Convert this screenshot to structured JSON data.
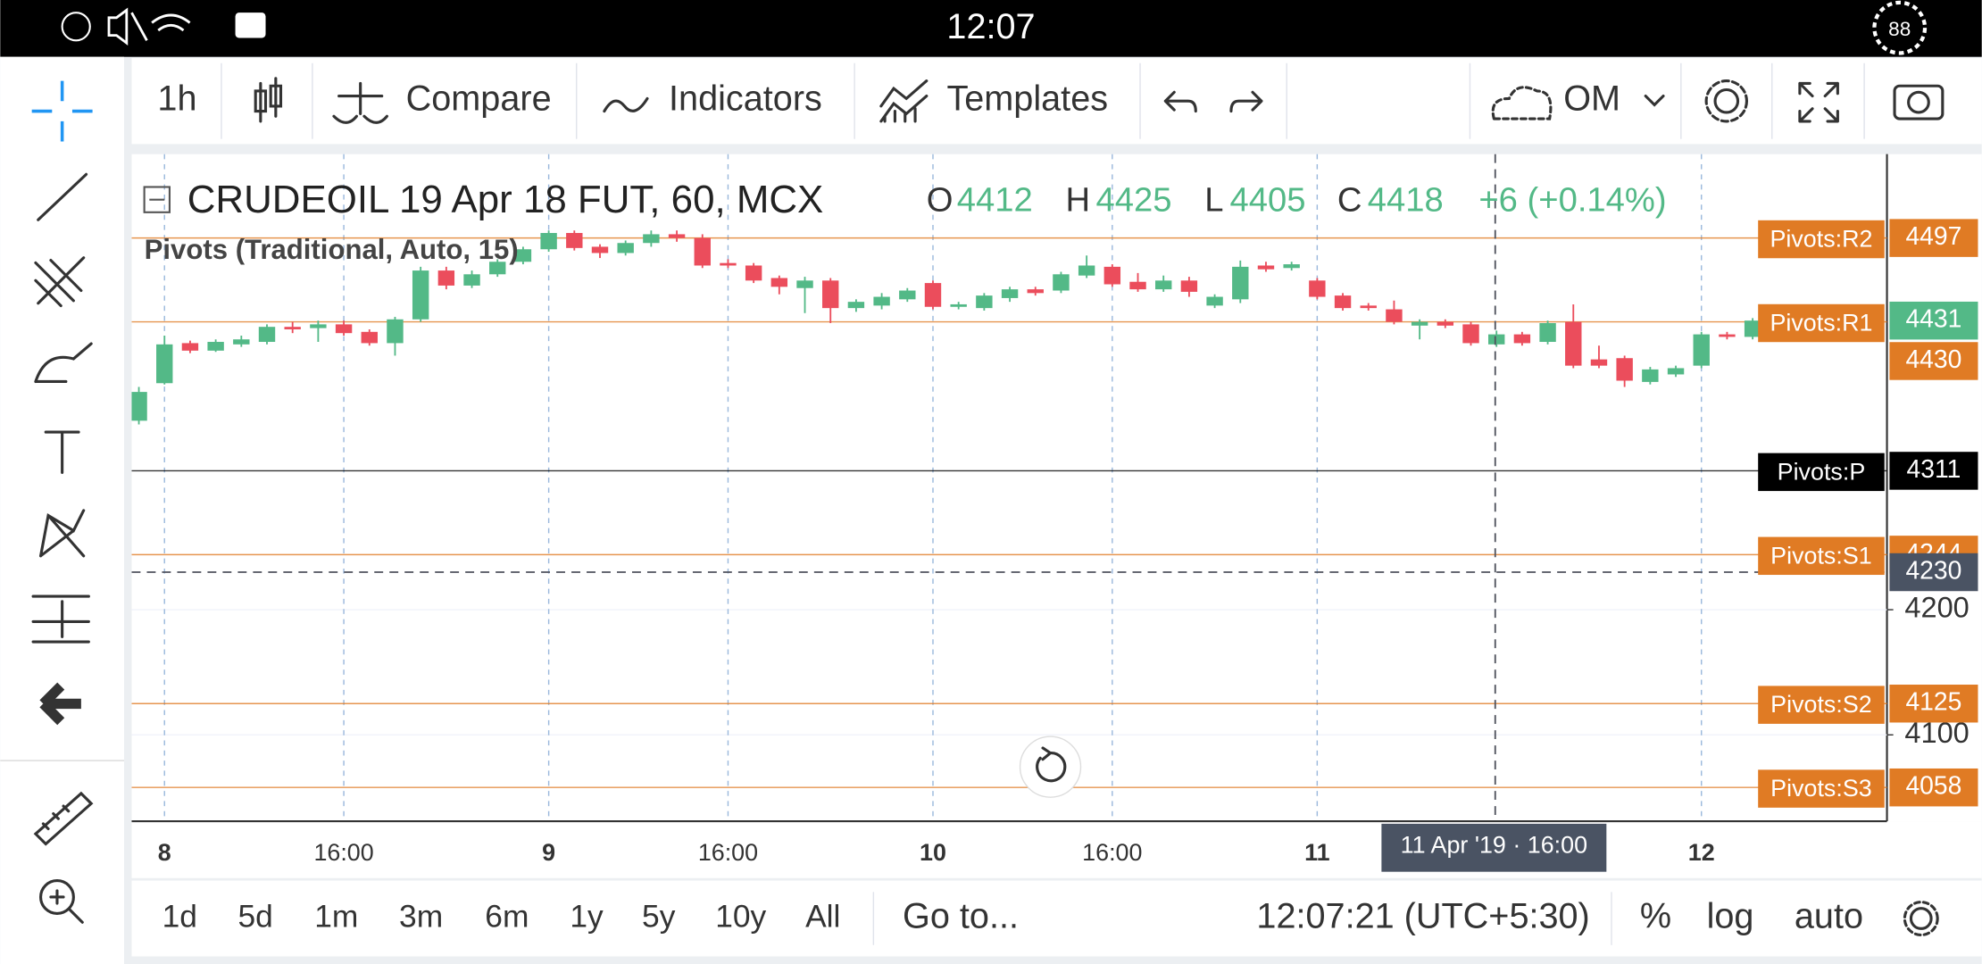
{
  "status_bar": {
    "time": "12:07",
    "battery": "88"
  },
  "toolbar": {
    "interval": "1h",
    "compare": "Compare",
    "indicators": "Indicators",
    "templates": "Templates",
    "account": "OM"
  },
  "chart_data": {
    "type": "candlestick",
    "title": "CRUDEOIL 19 Apr 18 FUT, 60, MCX",
    "legend_ohlc": {
      "labels": [
        "O",
        "H",
        "L",
        "C"
      ],
      "values": [
        4412,
        4425,
        4405,
        4418
      ],
      "change": "+6 (+0.14%)"
    },
    "indicator": "Pivots (Traditional, Auto, 15)",
    "up_color": "#53b987",
    "down_color": "#eb4d5c",
    "categories": [
      null,
      "8",
      null,
      null,
      null,
      null,
      null,
      null,
      "16:00",
      null,
      null,
      null,
      null,
      null,
      null,
      null,
      "9",
      null,
      null,
      null,
      null,
      null,
      null,
      "16:00",
      null,
      null,
      null,
      null,
      null,
      null,
      null,
      "10",
      null,
      null,
      null,
      null,
      null,
      null,
      "16:00",
      null,
      null,
      null,
      null,
      null,
      null,
      null,
      "11",
      null,
      null,
      null,
      null,
      null,
      null,
      null,
      null,
      null,
      null,
      null,
      null,
      null,
      null,
      "12",
      null,
      null
    ],
    "open": [
      4351,
      4381,
      4413,
      4407,
      4412,
      4414,
      4426,
      4425,
      4428,
      4422,
      4413,
      4432,
      4471,
      4459,
      4468,
      4478,
      4488,
      4501,
      4490,
      4485,
      4493,
      4500,
      4497,
      4477,
      4475,
      4465,
      4457,
      4463,
      4441,
      4443,
      4448,
      4461,
      4442,
      4441,
      4449,
      4456,
      4455,
      4467,
      4474,
      4462,
      4456,
      4463,
      4443,
      4448,
      4475,
      4473,
      4463,
      4451,
      4443,
      4440,
      4427,
      4430,
      4428,
      4412,
      4420,
      4414,
      4430,
      4400,
      4401,
      4382,
      4388,
      4395,
      4420,
      4418
    ],
    "high": [
      4378,
      4419,
      4415,
      4416,
      4419,
      4428,
      4430,
      4431,
      4431,
      4424,
      4434,
      4474,
      4474,
      4471,
      4480,
      4490,
      4503,
      4503,
      4492,
      4495,
      4503,
      4503,
      4500,
      4480,
      4477,
      4467,
      4466,
      4465,
      4448,
      4453,
      4457,
      4463,
      4446,
      4453,
      4458,
      4458,
      4470,
      4483,
      4476,
      4469,
      4467,
      4466,
      4452,
      4479,
      4478,
      4478,
      4465,
      4453,
      4445,
      4447,
      4432,
      4432,
      4430,
      4423,
      4422,
      4431,
      4444,
      4411,
      4403,
      4394,
      4395,
      4422,
      4422,
      4433
    ],
    "low": [
      4348,
      4380,
      4405,
      4406,
      4410,
      4412,
      4421,
      4414,
      4419,
      4411,
      4403,
      4430,
      4456,
      4457,
      4466,
      4476,
      4486,
      4487,
      4481,
      4483,
      4490,
      4494,
      4473,
      4473,
      4461,
      4452,
      4437,
      4429,
      4438,
      4440,
      4446,
      4440,
      4440,
      4439,
      4446,
      4451,
      4453,
      4465,
      4458,
      4454,
      4454,
      4450,
      4441,
      4445,
      4470,
      4471,
      4448,
      4439,
      4439,
      4428,
      4416,
      4425,
      4411,
      4410,
      4411,
      4412,
      4393,
      4393,
      4378,
      4380,
      4386,
      4393,
      4416,
      4416
    ],
    "close": [
      4374,
      4412,
      4407,
      4414,
      4416,
      4426,
      4424,
      4428,
      4421,
      4413,
      4432,
      4471,
      4459,
      4468,
      4478,
      4488,
      4501,
      4489,
      4485,
      4493,
      4500,
      4497,
      4475,
      4475,
      4463,
      4458,
      4463,
      4441,
      4446,
      4450,
      4455,
      4442,
      4444,
      4451,
      4456,
      4453,
      4468,
      4475,
      4460,
      4456,
      4463,
      4454,
      4450,
      4474,
      4472,
      4476,
      4450,
      4441,
      4441,
      4430,
      4430,
      4427,
      4413,
      4420,
      4413,
      4429,
      4395,
      4395,
      4383,
      4392,
      4393,
      4420,
      4418,
      4431
    ],
    "ylim": [
      4031,
      4564
    ],
    "yticks": [
      4100,
      4200
    ],
    "grid": true,
    "last_price": 4431,
    "pivots": {
      "names": [
        "Pivots:R2",
        "Pivots:R1",
        "Pivots:P",
        "Pivots:S1",
        "Pivots:S2",
        "Pivots:S3"
      ],
      "values": [
        4497,
        4430,
        4311,
        4244,
        4125,
        4058
      ],
      "colors": [
        "#e07b24",
        "#e07b24",
        "#000000",
        "#e07b24",
        "#e07b24",
        "#e07b24"
      ]
    },
    "crosshair": {
      "price": 4230,
      "time_label": "11 Apr '19 · 16:00"
    }
  },
  "range_bar": {
    "ranges": [
      "1d",
      "5d",
      "1m",
      "3m",
      "6m",
      "1y",
      "5y",
      "10y",
      "All"
    ],
    "goto": "Go to...",
    "clock": "12:07:21 (UTC+5:30)",
    "percent": "%",
    "log": "log",
    "auto": "auto"
  }
}
